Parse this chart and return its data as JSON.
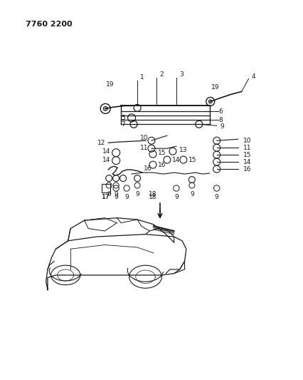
{
  "title_code": "7760 2200",
  "bg_color": "#ffffff",
  "line_color": "#1a1a1a",
  "title_fontsize": 8,
  "diagram_fontsize": 6.5,
  "fig_width": 4.27,
  "fig_height": 5.33,
  "dpi": 100
}
